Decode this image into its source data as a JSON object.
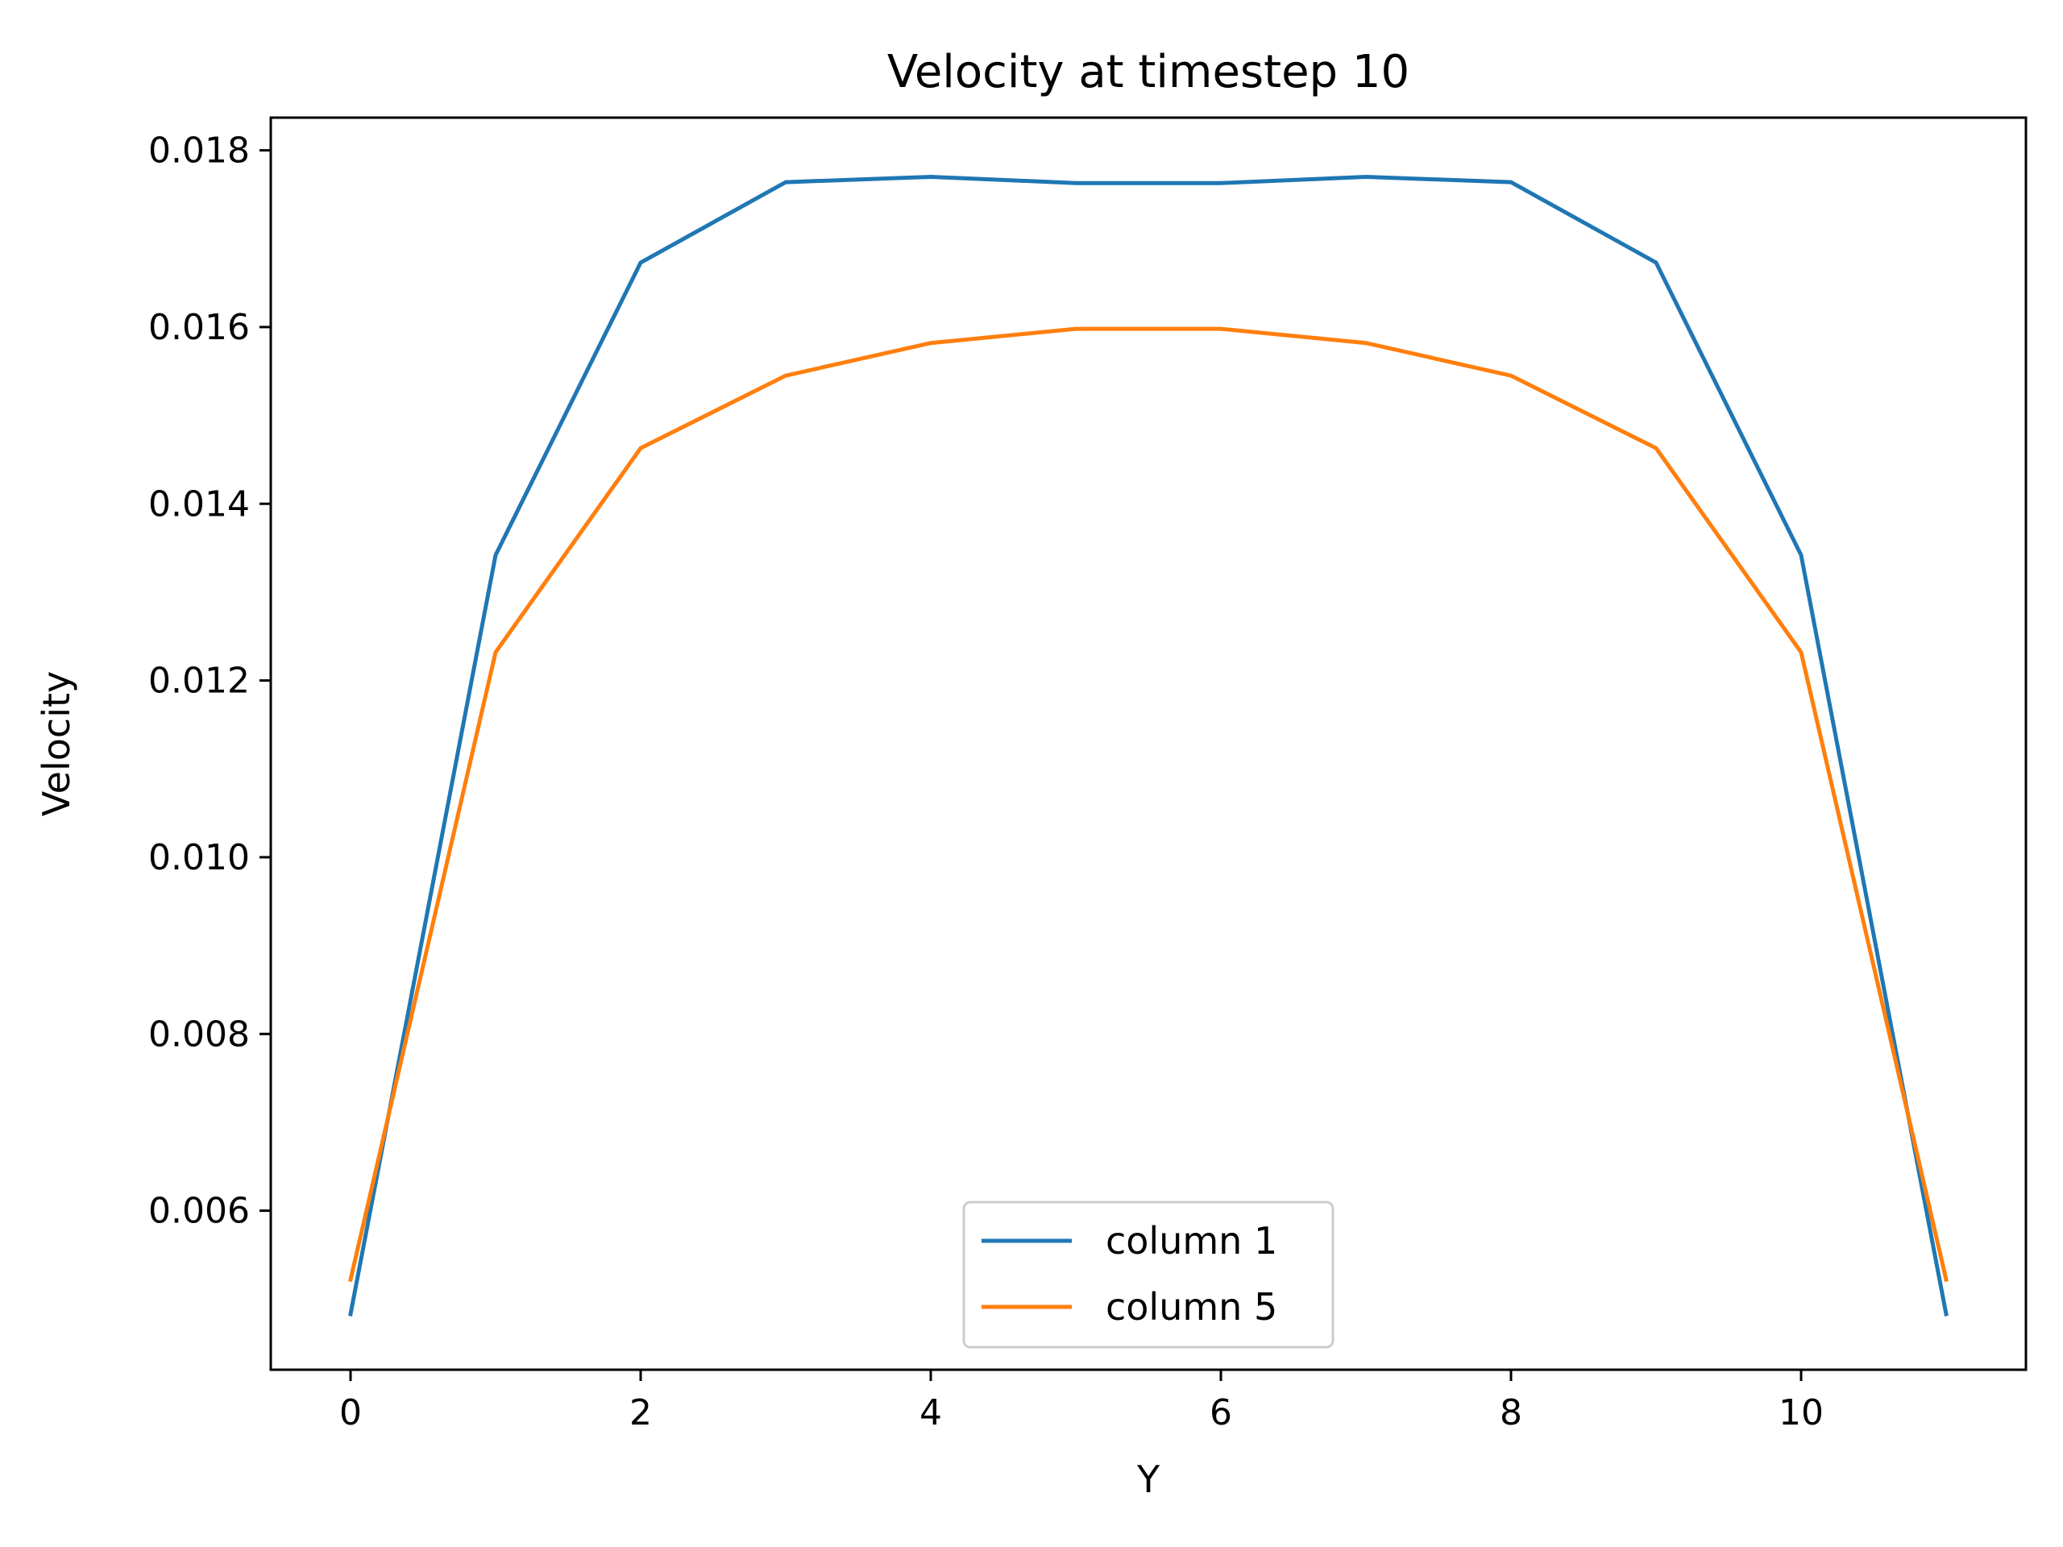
{
  "chart_data": {
    "type": "line",
    "title": "Velocity at timestep 10",
    "xlabel": "Y",
    "ylabel": "Velocity",
    "xlim": [
      -0.55,
      11.55
    ],
    "ylim": [
      0.0042,
      0.01837
    ],
    "xticks": [
      0,
      2,
      4,
      6,
      8,
      10
    ],
    "xtick_labels": [
      "0",
      "2",
      "4",
      "6",
      "8",
      "10"
    ],
    "yticks": [
      0.006,
      0.008,
      0.01,
      0.012,
      0.014,
      0.016,
      0.018
    ],
    "ytick_labels": [
      "0.006",
      "0.008",
      "0.010",
      "0.012",
      "0.014",
      "0.016",
      "0.018"
    ],
    "grid": false,
    "legend_position": "lower center",
    "x": [
      0,
      1,
      2,
      3,
      4,
      5,
      6,
      7,
      8,
      9,
      10,
      11
    ],
    "series": [
      {
        "name": "column 1",
        "color": "#1f77b4",
        "values": [
          0.00483,
          0.01342,
          0.01673,
          0.01764,
          0.0177,
          0.01763,
          0.01763,
          0.0177,
          0.01764,
          0.01673,
          0.01342,
          0.00483
        ]
      },
      {
        "name": "column 5",
        "color": "#ff7f0e",
        "values": [
          0.00522,
          0.01232,
          0.01463,
          0.01545,
          0.01582,
          0.01598,
          0.01598,
          0.01582,
          0.01545,
          0.01463,
          0.01232,
          0.00522
        ]
      }
    ]
  }
}
